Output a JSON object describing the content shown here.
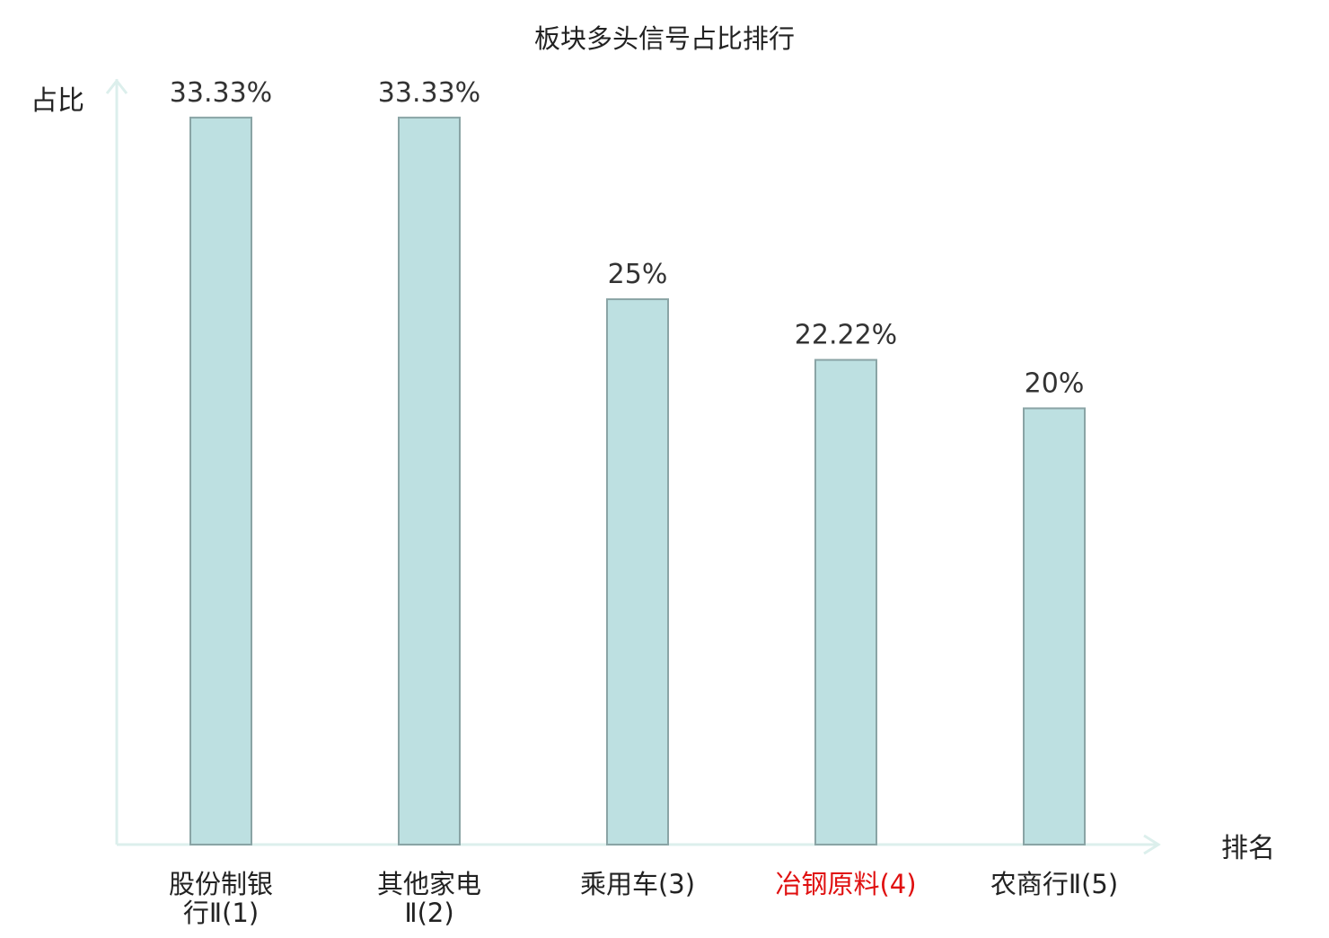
{
  "chart_data": {
    "type": "bar",
    "title": "板块多头信号占比排行",
    "ylabel": "占比",
    "xlabel": "排名",
    "ylim": [
      0,
      34.6
    ],
    "grid": false,
    "categories": [
      [
        "股份制银",
        "行Ⅱ(1)"
      ],
      [
        "其他家电",
        "Ⅱ(2)"
      ],
      [
        "乘用车(3)"
      ],
      [
        "冶钢原料(4)"
      ],
      [
        "农商行Ⅱ(5)"
      ]
    ],
    "values": [
      33.33,
      33.33,
      25,
      22.22,
      20
    ],
    "value_labels": [
      "33.33%",
      "33.33%",
      "25%",
      "22.22%",
      "20%"
    ],
    "highlight_index": 3,
    "colors": {
      "bar_fill": "#bde0e1",
      "bar_stroke": "#8aa4a5",
      "axis": "#dcefec",
      "text": "#333333",
      "highlight_text": "#e01010"
    }
  }
}
